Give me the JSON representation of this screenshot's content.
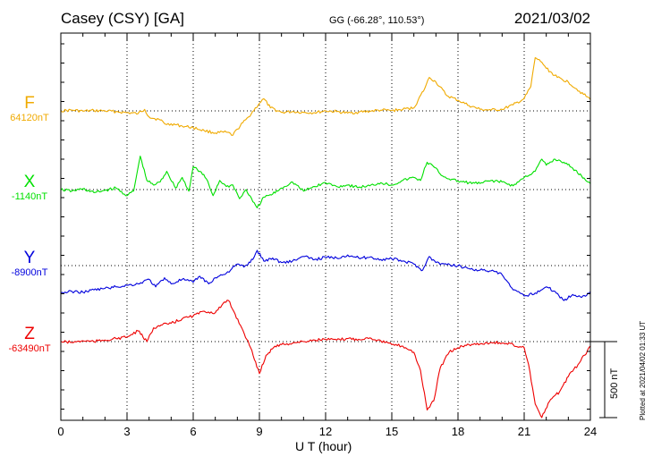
{
  "header": {
    "station": "Casey (CSY)  [GA]",
    "coords": "GG (-66.28°, 110.53°)",
    "date": "2021/03/02"
  },
  "footer": {
    "plotted": "Plotted at 2021/04/02 01:33 UT",
    "scale_label": "500 nT"
  },
  "colors": {
    "F": "#f0aa00",
    "X": "#00e000",
    "Y": "#0000dd",
    "Z": "#ee0000"
  },
  "chart_data": {
    "type": "line",
    "xlabel": "U T (hour)",
    "xlim": [
      0,
      24
    ],
    "xticks": [
      0,
      3,
      6,
      9,
      12,
      15,
      18,
      21,
      24
    ],
    "scale_bar_nT": 500,
    "series": [
      {
        "name": "F",
        "color": "#f0aa00",
        "baseline_label": "64120nT",
        "baseline": 64120,
        "x": [
          0,
          0.5,
          1,
          1.5,
          2,
          2.5,
          3,
          3.5,
          3.8,
          4,
          4.5,
          4.8,
          5,
          5.5,
          6,
          6.5,
          7,
          7.5,
          7.8,
          8,
          8.5,
          9,
          9.2,
          9.5,
          10,
          10.5,
          11,
          11.5,
          12,
          12.5,
          13,
          13.5,
          14,
          14.5,
          15,
          15.5,
          16,
          16.5,
          16.7,
          17,
          17.5,
          18,
          18.5,
          19,
          19.5,
          20,
          20.5,
          21,
          21.3,
          21.5,
          21.8,
          22,
          22.5,
          23,
          23.5,
          24
        ],
        "values": [
          64120,
          64125,
          64118,
          64122,
          64120,
          64115,
          64108,
          64102,
          64130,
          64080,
          64060,
          64030,
          64035,
          64020,
          64010,
          63990,
          63975,
          63980,
          63960,
          64000,
          64080,
          64170,
          64200,
          64140,
          64110,
          64115,
          64110,
          64108,
          64120,
          64115,
          64105,
          64112,
          64118,
          64125,
          64122,
          64130,
          64140,
          64270,
          64340,
          64310,
          64220,
          64190,
          64155,
          64130,
          64125,
          64130,
          64160,
          64200,
          64280,
          64470,
          64440,
          64400,
          64340,
          64310,
          64250,
          64195
        ]
      },
      {
        "name": "X",
        "color": "#00e000",
        "baseline_label": "-1140nT",
        "baseline": -1140,
        "x": [
          0,
          0.5,
          1,
          1.5,
          2,
          2.5,
          3,
          3.3,
          3.6,
          3.9,
          4.2,
          4.5,
          4.8,
          5.2,
          5.5,
          5.8,
          6,
          6.3,
          6.6,
          6.9,
          7.2,
          7.5,
          7.8,
          8.1,
          8.4,
          8.7,
          8.9,
          9.2,
          9.6,
          10,
          10.5,
          11,
          11.5,
          12,
          12.5,
          13,
          13.5,
          14,
          14.5,
          15,
          15.5,
          16,
          16.3,
          16.6,
          16.9,
          17.3,
          17.6,
          18,
          18.5,
          19,
          19.5,
          20,
          20.5,
          21,
          21.5,
          21.8,
          22,
          22.4,
          22.8,
          23.2,
          23.6,
          24
        ],
        "values": [
          -1140,
          -1150,
          -1135,
          -1160,
          -1145,
          -1130,
          -1180,
          -1150,
          -920,
          -1080,
          -1110,
          -1090,
          -1020,
          -1130,
          -1060,
          -1150,
          -990,
          -1020,
          -1070,
          -1180,
          -1080,
          -1120,
          -1110,
          -1200,
          -1140,
          -1220,
          -1260,
          -1190,
          -1170,
          -1130,
          -1090,
          -1150,
          -1120,
          -1095,
          -1120,
          -1110,
          -1125,
          -1115,
          -1095,
          -1110,
          -1080,
          -1060,
          -1080,
          -960,
          -990,
          -1050,
          -1070,
          -1085,
          -1095,
          -1100,
          -1080,
          -1090,
          -1115,
          -1060,
          -1020,
          -940,
          -980,
          -940,
          -960,
          -1000,
          -1050,
          -1100
        ]
      },
      {
        "name": "Y",
        "color": "#0000dd",
        "baseline_label": "-8900nT",
        "baseline": -8900,
        "x": [
          0,
          0.5,
          1,
          1.5,
          2,
          2.5,
          3,
          3.5,
          4,
          4.3,
          4.7,
          5,
          5.5,
          6,
          6.3,
          6.7,
          7,
          7.5,
          8,
          8.3,
          8.7,
          8.9,
          9.2,
          9.6,
          10,
          10.5,
          11,
          11.5,
          12,
          12.5,
          13,
          13.5,
          14,
          14.5,
          15,
          15.5,
          16,
          16.4,
          16.7,
          17,
          17.5,
          18,
          18.5,
          19,
          19.5,
          20,
          20.5,
          21,
          21.5,
          22,
          22.4,
          22.8,
          23.2,
          23.6,
          24
        ],
        "values": [
          -9080,
          -9070,
          -9075,
          -9060,
          -9050,
          -9040,
          -9030,
          -9020,
          -8990,
          -9040,
          -8980,
          -9020,
          -8990,
          -9010,
          -8970,
          -9020,
          -8980,
          -8950,
          -8890,
          -8910,
          -8860,
          -8800,
          -8870,
          -8850,
          -8880,
          -8870,
          -8840,
          -8860,
          -8845,
          -8850,
          -8830,
          -8850,
          -8845,
          -8860,
          -8855,
          -8870,
          -8890,
          -8930,
          -8840,
          -8880,
          -8895,
          -8900,
          -8920,
          -8930,
          -8935,
          -8960,
          -9060,
          -9100,
          -9080,
          -9040,
          -9070,
          -9130,
          -9090,
          -9110,
          -9070
        ]
      },
      {
        "name": "Z",
        "color": "#ee0000",
        "baseline_label": "-63490nT",
        "baseline": -63490,
        "x": [
          0,
          0.5,
          1,
          1.5,
          2,
          2.5,
          3,
          3.5,
          3.9,
          4.2,
          4.6,
          5,
          5.5,
          6,
          6.5,
          7,
          7.3,
          7.6,
          7.9,
          8.2,
          8.6,
          9,
          9.3,
          9.7,
          10,
          10.5,
          11,
          11.5,
          12,
          12.5,
          13,
          13.5,
          14,
          14.5,
          15,
          15.5,
          16,
          16.3,
          16.6,
          16.9,
          17.2,
          17.6,
          18,
          18.5,
          19,
          19.5,
          20,
          20.5,
          21,
          21.2,
          21.5,
          21.8,
          22.2,
          22.6,
          23,
          23.5,
          24
        ],
        "values": [
          -63490,
          -63495,
          -63485,
          -63490,
          -63480,
          -63470,
          -63460,
          -63420,
          -63490,
          -63400,
          -63380,
          -63370,
          -63340,
          -63320,
          -63290,
          -63300,
          -63250,
          -63220,
          -63310,
          -63400,
          -63530,
          -63700,
          -63580,
          -63520,
          -63510,
          -63500,
          -63490,
          -63480,
          -63475,
          -63480,
          -63470,
          -63475,
          -63465,
          -63485,
          -63510,
          -63520,
          -63560,
          -63680,
          -63940,
          -63880,
          -63660,
          -63560,
          -63530,
          -63510,
          -63505,
          -63495,
          -63500,
          -63510,
          -63530,
          -63640,
          -63900,
          -63990,
          -63870,
          -63820,
          -63720,
          -63630,
          -63520
        ]
      }
    ]
  }
}
